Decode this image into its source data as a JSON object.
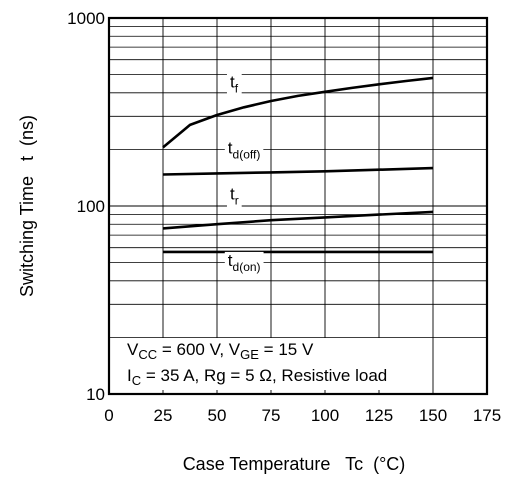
{
  "chart_data": {
    "type": "line",
    "xlabel": "Case Temperature   Tc  (°C)",
    "ylabel": "Switching Time   t  (ns)",
    "x_scale": "linear",
    "y_scale": "log",
    "xlim": [
      0,
      175
    ],
    "ylim": [
      10,
      1000
    ],
    "grid": true,
    "x_ticks": [
      "0",
      "25",
      "50",
      "75",
      "100",
      "125",
      "150",
      "175"
    ],
    "y_ticks": [
      "10",
      "100",
      "1000"
    ],
    "series": [
      {
        "name": "tf",
        "label_main": "t",
        "label_sub": "f",
        "label_x": 56,
        "label_y": 428,
        "x": [
          25,
          37.5,
          50,
          62.5,
          75,
          87.5,
          100,
          112.5,
          125,
          137.5,
          150
        ],
        "y": [
          205,
          270,
          305,
          335,
          362,
          385,
          405,
          425,
          444,
          462,
          480
        ]
      },
      {
        "name": "td(off)",
        "label_main": "t",
        "label_sub": "d(off)",
        "label_x": 55,
        "label_y": 190,
        "x": [
          25,
          50,
          75,
          100,
          125,
          150
        ],
        "y": [
          147,
          149,
          151,
          153,
          156,
          159
        ]
      },
      {
        "name": "tr",
        "label_main": "t",
        "label_sub": "r",
        "label_x": 56,
        "label_y": 108,
        "x": [
          25,
          50,
          75,
          100,
          125,
          150
        ],
        "y": [
          76,
          80,
          84,
          87,
          90,
          93
        ]
      },
      {
        "name": "td(on)",
        "label_main": "t",
        "label_sub": "d(on)",
        "label_x": 55,
        "label_y": 48,
        "x": [
          25,
          150
        ],
        "y": [
          57,
          57
        ]
      }
    ],
    "annotation": {
      "line1": [
        {
          "t": "V",
          "sub": false
        },
        {
          "t": "CC",
          "sub": true
        },
        {
          "t": " = 600 V, V",
          "sub": false
        },
        {
          "t": "GE",
          "sub": true
        },
        {
          "t": " = 15 V",
          "sub": false
        }
      ],
      "line2": [
        {
          "t": "I",
          "sub": false
        },
        {
          "t": "C",
          "sub": true
        },
        {
          "t": " = 35 A, Rg = 5 Ω, Resistive load",
          "sub": false
        }
      ]
    }
  }
}
